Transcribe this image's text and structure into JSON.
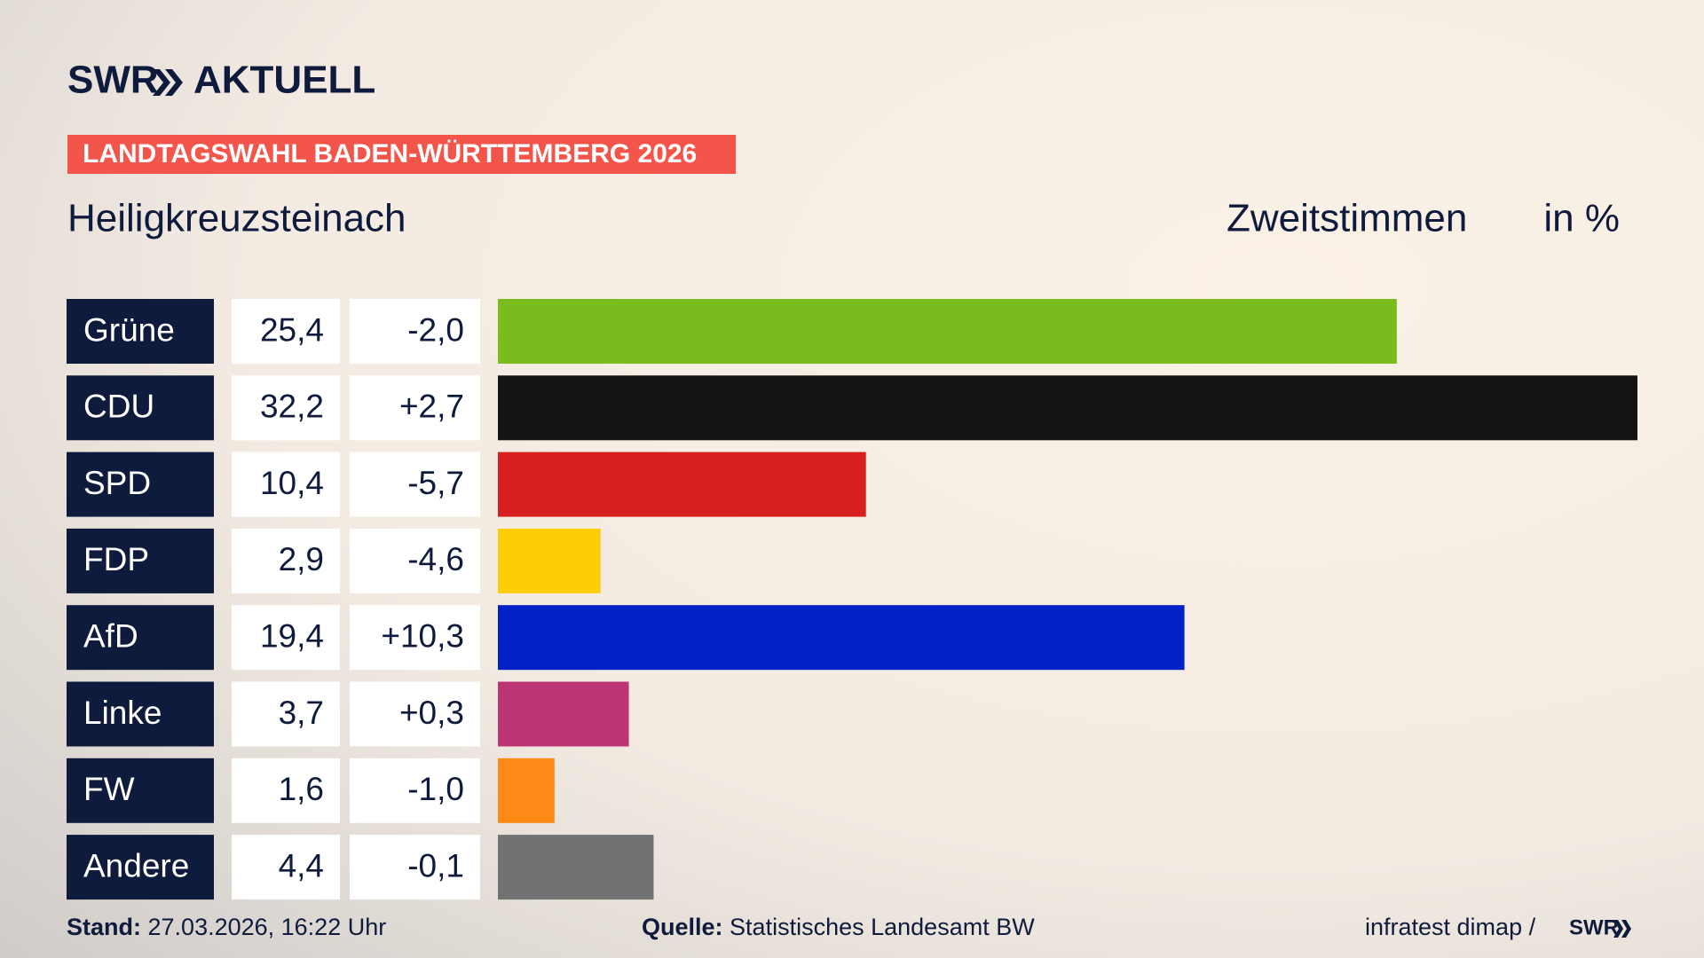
{
  "header": {
    "logo": "SWR",
    "logo_suffix": "AKTUELL",
    "banner": "LANDTAGSWAHL BADEN-WÜRTTEMBERG 2026",
    "location": "Heiligkreuzsteinach"
  },
  "chart_data": {
    "type": "bar",
    "title": "Zweitstimmen",
    "unit": "in %",
    "categories": [
      "Grüne",
      "CDU",
      "SPD",
      "FDP",
      "AfD",
      "Linke",
      "FW",
      "Andere"
    ],
    "values": [
      25.4,
      32.2,
      10.4,
      2.9,
      19.4,
      3.7,
      1.6,
      4.4
    ],
    "value_labels": [
      "25,4",
      "32,2",
      "10,4",
      "2,9",
      "19,4",
      "3,7",
      "1,6",
      "4,4"
    ],
    "changes": [
      -2.0,
      2.7,
      -5.7,
      -4.6,
      10.3,
      0.3,
      -1.0,
      -0.1
    ],
    "change_labels": [
      "-2,0",
      "+2,7",
      "-5,7",
      "-4,6",
      "+10,3",
      "+0,3",
      "-1,0",
      "-0,1"
    ],
    "colors": [
      "#7abc1e",
      "#131313",
      "#d81f1f",
      "#fdcd08",
      "#0021c6",
      "#bc3474",
      "#fd8a16",
      "#727272"
    ]
  },
  "footer": {
    "stand_label": "Stand:",
    "stand": "27.03.2026, 16:22 Uhr",
    "source_label": "Quelle:",
    "source": "Statistisches Landesamt BW",
    "credit": "infratest dimap /",
    "credit_logo": "SWR"
  }
}
